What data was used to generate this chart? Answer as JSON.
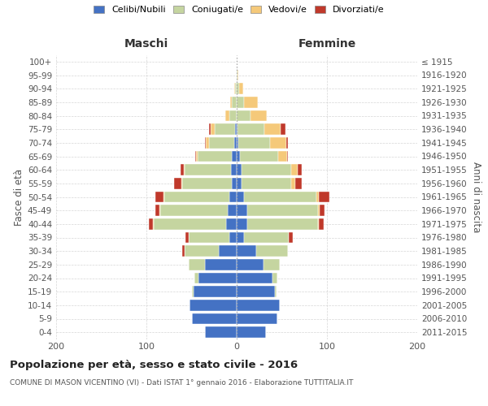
{
  "age_groups": [
    "0-4",
    "5-9",
    "10-14",
    "15-19",
    "20-24",
    "25-29",
    "30-34",
    "35-39",
    "40-44",
    "45-49",
    "50-54",
    "55-59",
    "60-64",
    "65-69",
    "70-74",
    "75-79",
    "80-84",
    "85-89",
    "90-94",
    "95-99",
    "100+"
  ],
  "birth_years": [
    "2011-2015",
    "2006-2010",
    "2001-2005",
    "1996-2000",
    "1991-1995",
    "1986-1990",
    "1981-1985",
    "1976-1980",
    "1971-1975",
    "1966-1970",
    "1961-1965",
    "1956-1960",
    "1951-1955",
    "1946-1950",
    "1941-1945",
    "1936-1940",
    "1931-1935",
    "1926-1930",
    "1921-1925",
    "1916-1920",
    "≤ 1915"
  ],
  "maschi": {
    "celibi": [
      35,
      50,
      52,
      48,
      42,
      35,
      20,
      8,
      12,
      10,
      8,
      5,
      6,
      5,
      3,
      2,
      0,
      0,
      0,
      0,
      0
    ],
    "coniugati": [
      0,
      0,
      0,
      2,
      5,
      18,
      38,
      45,
      80,
      75,
      72,
      55,
      52,
      38,
      28,
      22,
      8,
      5,
      2,
      0,
      0
    ],
    "vedovi": [
      0,
      0,
      0,
      0,
      0,
      0,
      0,
      0,
      1,
      1,
      1,
      1,
      1,
      2,
      3,
      5,
      5,
      2,
      1,
      0,
      0
    ],
    "divorziati": [
      0,
      0,
      0,
      0,
      0,
      0,
      2,
      4,
      4,
      4,
      9,
      8,
      3,
      1,
      1,
      2,
      0,
      0,
      0,
      0,
      0
    ]
  },
  "femmine": {
    "nubili": [
      32,
      45,
      48,
      42,
      40,
      30,
      22,
      8,
      12,
      12,
      8,
      5,
      5,
      4,
      2,
      1,
      0,
      0,
      0,
      0,
      0
    ],
    "coniugate": [
      0,
      0,
      0,
      2,
      5,
      18,
      35,
      50,
      78,
      78,
      80,
      55,
      55,
      42,
      35,
      30,
      15,
      8,
      3,
      1,
      0
    ],
    "vedove": [
      0,
      0,
      0,
      0,
      0,
      0,
      0,
      0,
      1,
      2,
      3,
      5,
      8,
      10,
      18,
      18,
      18,
      15,
      4,
      1,
      0
    ],
    "divorziate": [
      0,
      0,
      0,
      0,
      0,
      0,
      0,
      4,
      5,
      5,
      12,
      7,
      4,
      1,
      2,
      5,
      0,
      0,
      0,
      0,
      0
    ]
  },
  "colors": {
    "celibi_nubili": "#4472C4",
    "coniugati_e": "#C5D5A0",
    "vedovi_e": "#F5C97A",
    "divorziati_e": "#C0392B"
  },
  "title": "Popolazione per età, sesso e stato civile - 2016",
  "subtitle": "COMUNE DI MASON VICENTINO (VI) - Dati ISTAT 1° gennaio 2016 - Elaborazione TUTTITALIA.IT",
  "xlabel_left": "Maschi",
  "xlabel_right": "Femmine",
  "ylabel_left": "Fasce di età",
  "ylabel_right": "Anni di nascita",
  "xlim": 200,
  "bg_color": "#FFFFFF",
  "grid_color": "#CCCCCC"
}
